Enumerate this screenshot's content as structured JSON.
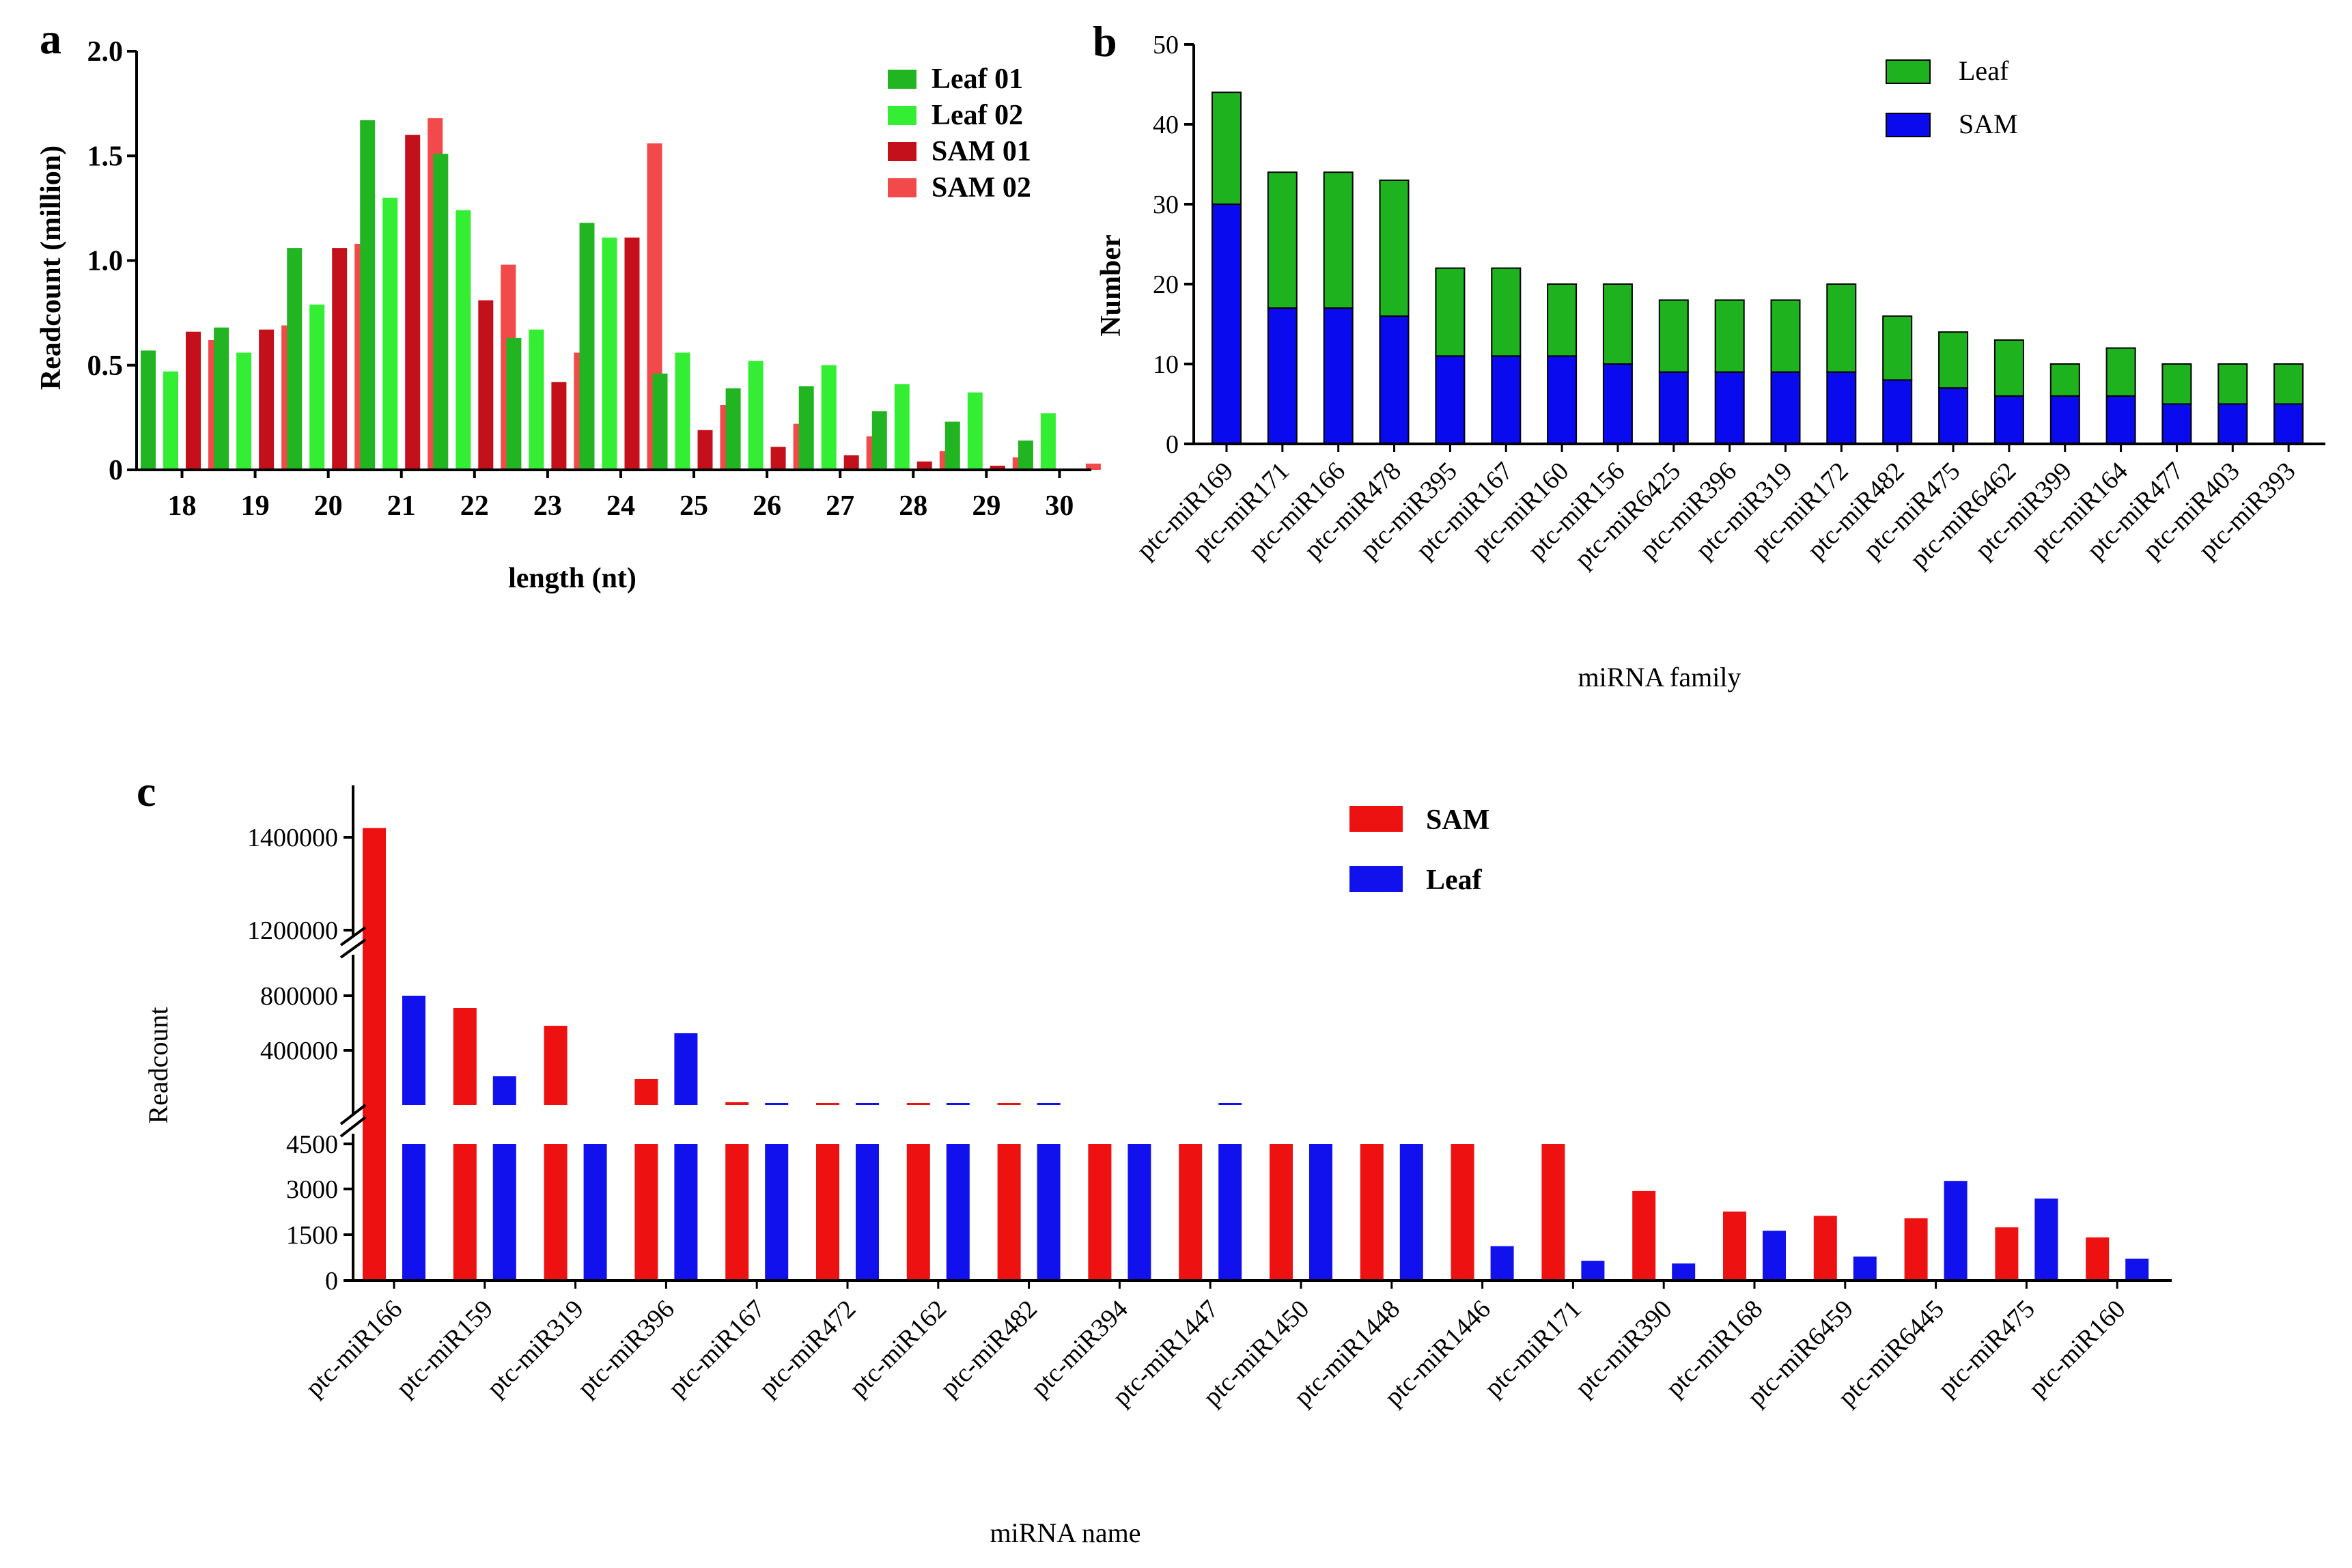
{
  "chart_data": [
    {
      "panel": "a",
      "type": "bar",
      "title": "",
      "xlabel": "length (nt)",
      "ylabel": "Readcount (million)",
      "ylim": [
        0,
        2.0
      ],
      "yticks": [
        "0",
        "0.5",
        "1.0",
        "1.5",
        "2.0"
      ],
      "categories": [
        "18",
        "19",
        "20",
        "21",
        "22",
        "23",
        "24",
        "25",
        "26",
        "27",
        "28",
        "29",
        "30"
      ],
      "legend_position": "top-right",
      "series": [
        {
          "name": "Leaf 01",
          "color": "#22b522",
          "values": [
            0.57,
            0.68,
            1.06,
            1.67,
            1.51,
            0.63,
            1.18,
            0.46,
            0.39,
            0.4,
            0.28,
            0.23,
            0.14
          ]
        },
        {
          "name": "Leaf 02",
          "color": "#33ee33",
          "values": [
            0.47,
            0.56,
            0.79,
            1.3,
            1.24,
            0.67,
            1.11,
            0.56,
            0.52,
            0.5,
            0.41,
            0.37,
            0.27
          ]
        },
        {
          "name": "SAM 01",
          "color": "#c4101a",
          "values": [
            0.66,
            0.67,
            1.06,
            1.6,
            0.81,
            0.42,
            1.11,
            0.19,
            0.11,
            0.07,
            0.04,
            0.02,
            0.0
          ]
        },
        {
          "name": "SAM 02",
          "color": "#f24a4a",
          "values": [
            0.62,
            0.69,
            1.08,
            1.68,
            0.98,
            0.56,
            1.56,
            0.31,
            0.22,
            0.16,
            0.09,
            0.06,
            0.03
          ]
        }
      ]
    },
    {
      "panel": "b",
      "type": "bar",
      "stacked": true,
      "title": "",
      "xlabel": "miRNA family",
      "ylabel": "Number",
      "ylim": [
        0,
        50
      ],
      "yticks": [
        "0",
        "10",
        "20",
        "30",
        "40",
        "50"
      ],
      "categories": [
        "ptc-miR169",
        "ptc-miR171",
        "ptc-miR166",
        "ptc-miR478",
        "ptc-miR395",
        "ptc-miR167",
        "ptc-miR160",
        "ptc-miR156",
        "ptc-miR6425",
        "ptc-miR396",
        "ptc-miR319",
        "ptc-miR172",
        "ptc-miR482",
        "ptc-miR475",
        "ptc-miR6462",
        "ptc-miR399",
        "ptc-miR164",
        "ptc-miR477",
        "ptc-miR403",
        "ptc-miR393"
      ],
      "legend_position": "top-center",
      "series": [
        {
          "name": "SAM",
          "color": "#0a0aee",
          "values": [
            30,
            17,
            17,
            16,
            11,
            11,
            11,
            10,
            9,
            9,
            9,
            9,
            8,
            7,
            6,
            6,
            6,
            5,
            5,
            5
          ]
        },
        {
          "name": "Leaf",
          "color": "#1eb31e",
          "values": [
            14,
            17,
            17,
            17,
            11,
            11,
            9,
            10,
            9,
            9,
            9,
            11,
            8,
            7,
            7,
            4,
            6,
            5,
            5,
            5
          ]
        }
      ]
    },
    {
      "panel": "c",
      "type": "bar",
      "title": "",
      "xlabel": "miRNA name",
      "ylabel": "Readcount",
      "broken_axis": true,
      "yticks": [
        "0",
        "1500",
        "3000",
        "4500",
        "400000",
        "800000",
        "1200000",
        "1400000"
      ],
      "categories": [
        "ptc-miR166",
        "ptc-miR159",
        "ptc-miR319",
        "ptc-miR396",
        "ptc-miR167",
        "ptc-miR472",
        "ptc-miR162",
        "ptc-miR482",
        "ptc-miR394",
        "ptc-miR1447",
        "ptc-miR1450",
        "ptc-miR1448",
        "ptc-miR1446",
        "ptc-miR171",
        "ptc-miR390",
        "ptc-miR168",
        "ptc-miR6459",
        "ptc-miR6445",
        "ptc-miR475",
        "ptc-miR160"
      ],
      "legend_position": "top-center",
      "series": [
        {
          "name": "SAM",
          "color": "#ee1111",
          "values": [
            1420000,
            710000,
            580000,
            190000,
            20000,
            12000,
            6000,
            6000,
            4500,
            4500,
            4500,
            4500,
            4500,
            4500,
            2950,
            2270,
            2130,
            2050,
            1750,
            1420
          ]
        },
        {
          "name": "Leaf",
          "color": "#1111ee",
          "values": [
            970000,
            210000,
            4500,
            525000,
            15000,
            12000,
            6000,
            8000,
            4500,
            5000,
            4500,
            4500,
            1130,
            650,
            560,
            1640,
            790,
            3280,
            2700,
            720
          ]
        }
      ]
    }
  ]
}
